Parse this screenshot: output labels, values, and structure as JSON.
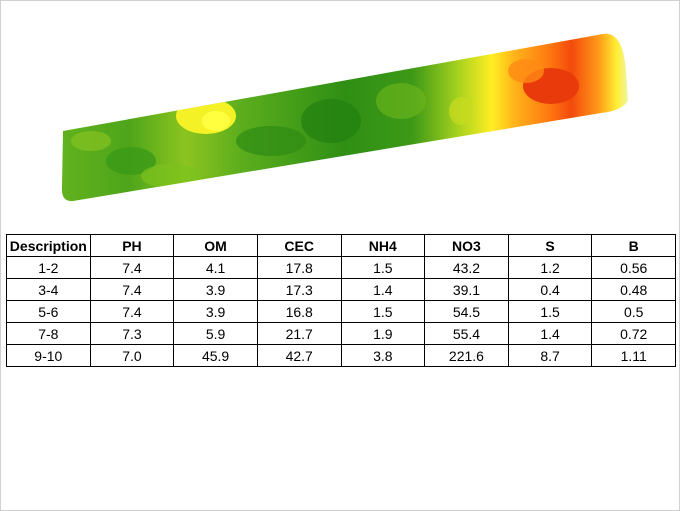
{
  "table": {
    "columns": [
      "Description",
      "PH",
      "OM",
      "CEC",
      "NH4",
      "NO3",
      "S",
      "B"
    ],
    "rows": [
      [
        "1-2",
        "7.4",
        "4.1",
        "17.8",
        "1.5",
        "43.2",
        "1.2",
        "0.56"
      ],
      [
        "3-4",
        "7.4",
        "3.9",
        "17.3",
        "1.4",
        "39.1",
        "0.4",
        "0.48"
      ],
      [
        "5-6",
        "7.4",
        "3.9",
        "16.8",
        "1.5",
        "54.5",
        "1.5",
        "0.5"
      ],
      [
        "7-8",
        "7.3",
        "5.9",
        "21.7",
        "1.9",
        "55.4",
        "1.4",
        "0.72"
      ],
      [
        "9-10",
        "7.0",
        "45.9",
        "42.7",
        "3.8",
        "221.6",
        "8.7",
        "1.11"
      ]
    ]
  }
}
